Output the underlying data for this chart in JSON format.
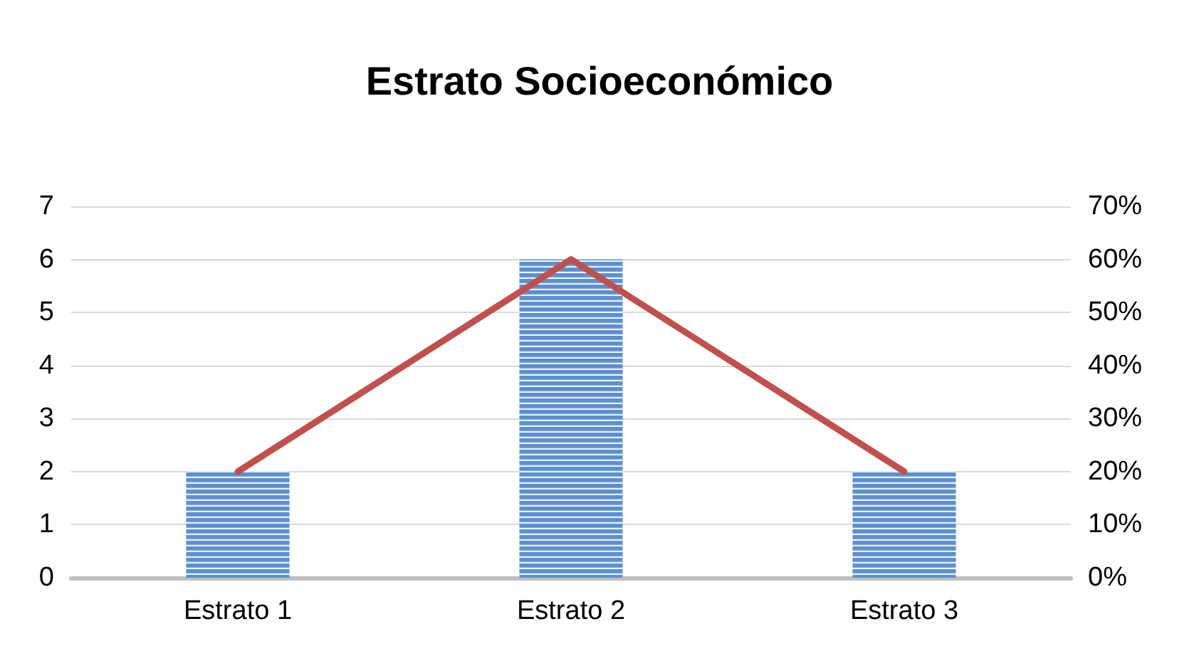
{
  "chart_data": {
    "type": "bar",
    "title": "Estrato Socioeconómico",
    "categories": [
      "Estrato 1",
      "Estrato 2",
      "Estrato 3"
    ],
    "series": [
      {
        "color": "#5b8fd0",
        "values": [
          2,
          6,
          2
        ]
      },
      {
        "type": "line",
        "axis": "y2",
        "color": "#c0504d",
        "values": [
          20,
          60,
          20
        ]
      }
    ],
    "ylim": [
      0,
      7
    ],
    "yticks": [
      0,
      1,
      2,
      3,
      4,
      5,
      6,
      7
    ],
    "y2lim": [
      0,
      70
    ],
    "y2ticks": [
      {
        "value": 0,
        "label": "0%"
      },
      {
        "value": 10,
        "label": "10%"
      },
      {
        "value": 20,
        "label": "20%"
      },
      {
        "value": 30,
        "label": "30%"
      },
      {
        "value": 40,
        "label": "40%"
      },
      {
        "value": 50,
        "label": "50%"
      },
      {
        "value": 60,
        "label": "60%"
      },
      {
        "value": 70,
        "label": "70%"
      }
    ],
    "grid": "y",
    "marker": "none",
    "line_style": "solid"
  }
}
